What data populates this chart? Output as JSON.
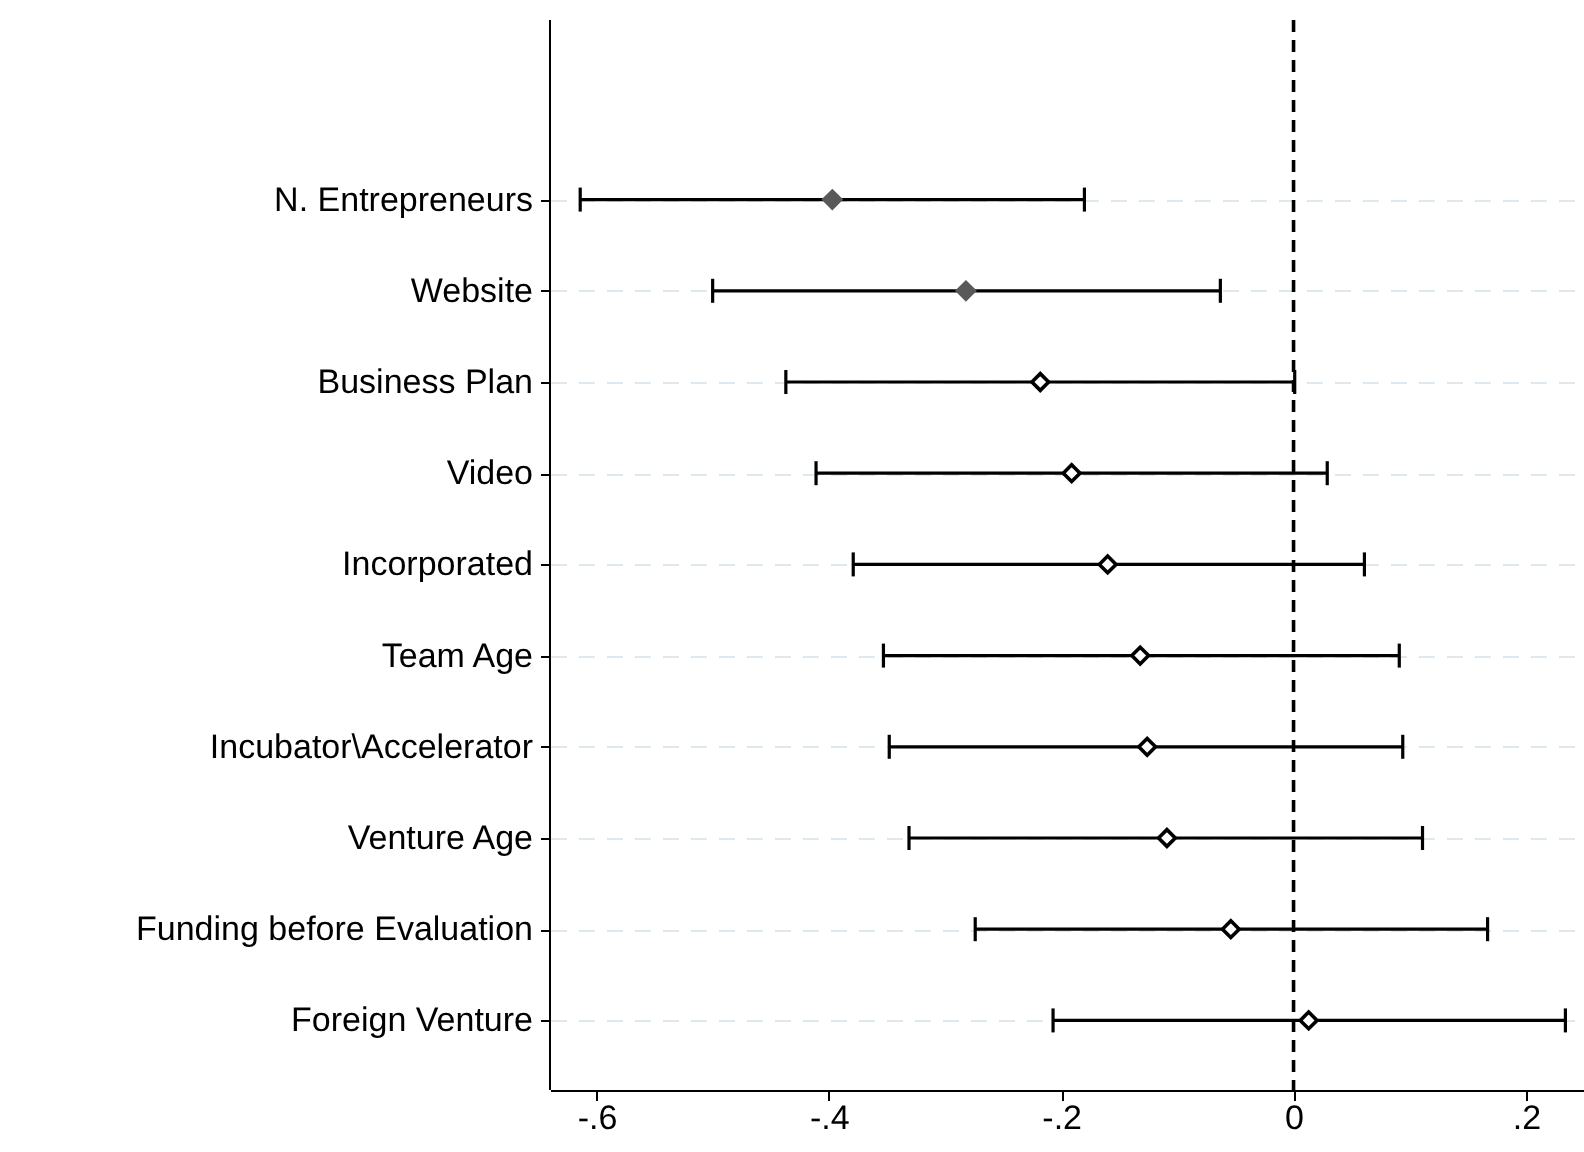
{
  "chart_data": {
    "type": "scatter",
    "orientation": "horizontal",
    "categories": [
      "N. Entrepreneurs",
      "Website",
      "Business Plan",
      "Video",
      "Incorporated",
      "Team Age",
      "Incubator\\Accelerator",
      "Venture Age",
      "Funding before Evaluation",
      "Foreign Venture"
    ],
    "series": [
      {
        "color": "#595959",
        "values": [
          -0.397,
          -0.282,
          null,
          null,
          null,
          null,
          null,
          null,
          null,
          null
        ],
        "errors": [
          [
            -0.614,
            -0.18
          ],
          [
            -0.5,
            -0.063
          ],
          null,
          null,
          null,
          null,
          null,
          null,
          null,
          null
        ]
      },
      {
        "color": "#000000",
        "values": [
          null,
          null,
          -0.218,
          -0.191,
          -0.16,
          -0.132,
          -0.126,
          -0.109,
          -0.054,
          0.013
        ],
        "errors": [
          null,
          null,
          [
            -0.437,
            0.001
          ],
          [
            -0.411,
            0.029
          ],
          [
            -0.379,
            0.061
          ],
          [
            -0.353,
            0.091
          ],
          [
            -0.348,
            0.094
          ],
          [
            -0.331,
            0.111
          ],
          [
            -0.274,
            0.167
          ],
          [
            -0.207,
            0.234
          ]
        ]
      }
    ],
    "xlim": [
      -0.64,
      0.25
    ],
    "xticks": [
      {
        "value": -0.6,
        "label": "-.6"
      },
      {
        "value": -0.4,
        "label": "-.4"
      },
      {
        "value": -0.2,
        "label": "-.2"
      },
      0,
      {
        "value": 0.2,
        "label": ".2"
      }
    ],
    "ref_lines": [
      {
        "axis": "x",
        "value": 0,
        "color": "#000000",
        "line_style": "dashed"
      }
    ],
    "grid": "y",
    "marker": "diamond"
  }
}
